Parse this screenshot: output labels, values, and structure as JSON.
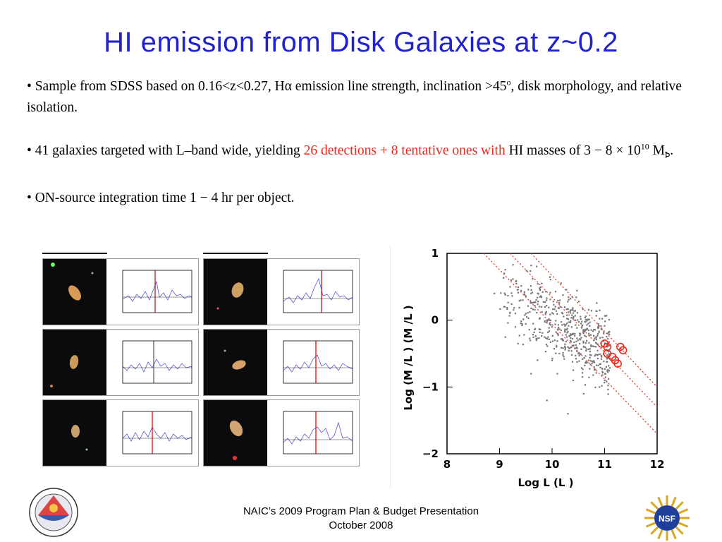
{
  "slide": {
    "title": "HI emission from Disk Galaxies at z~0.2",
    "bullet1": "• Sample from SDSS based on 0.16<z<0.27, Hα emission line strength, inclination >45",
    "bullet1_sup": "o",
    "bullet1_end": ", disk morphology, and relative isolation.",
    "bullet2_a": "• 41 galaxies targeted with L–band wide, yielding ",
    "bullet2_red": "26 detections + 8 tentative ones with",
    "bullet2_b": " HI masses of  3 − 8 × 10",
    "bullet2_sup": "10",
    "bullet2_c": " M",
    "bullet2_sub": "Ꝥ",
    "bullet2_d": ".",
    "bullet3": "• ON-source integration time 1 − 4 hr per object."
  },
  "footer": {
    "line1": "NAIC’s 2009 Program Plan & Budget Presentation",
    "line2": "October 2008"
  },
  "logos": {
    "right_text": "NSF"
  },
  "chart_data": {
    "type": "scatter",
    "xlabel": "Log  L  (L )",
    "xlabel_sub": "I",
    "xlabel_sun": "⊙",
    "ylabel": "Log  (M  /L )  (M /L )",
    "xlim": [
      8,
      12
    ],
    "ylim": [
      -2,
      1
    ],
    "xticks": [
      "8",
      "9",
      "10",
      "11",
      "12"
    ],
    "yticks": [
      "1",
      "0",
      "−1",
      "−2"
    ],
    "series": [
      {
        "marker": "gray-dots",
        "color": "#777777",
        "points": [
          [
            9.2,
            0.5
          ],
          [
            9.4,
            0.3
          ],
          [
            9.6,
            0.4
          ],
          [
            9.8,
            0.2
          ],
          [
            9.5,
            0.1
          ],
          [
            9.9,
            0.0
          ],
          [
            10.0,
            -0.1
          ],
          [
            10.1,
            -0.2
          ],
          [
            10.2,
            -0.3
          ],
          [
            10.3,
            -0.4
          ],
          [
            10.4,
            -0.2
          ],
          [
            10.5,
            -0.5
          ],
          [
            10.6,
            -0.4
          ],
          [
            10.7,
            -0.6
          ],
          [
            10.8,
            -0.7
          ],
          [
            10.2,
            0.1
          ],
          [
            9.7,
            -0.3
          ],
          [
            9.3,
            -0.1
          ],
          [
            10.0,
            -0.6
          ],
          [
            10.4,
            -0.9
          ],
          [
            10.6,
            -1.1
          ],
          [
            10.9,
            -1.0
          ],
          [
            9.6,
            -0.8
          ],
          [
            9.9,
            -1.2
          ],
          [
            10.3,
            -1.4
          ],
          [
            10.1,
            -0.8
          ],
          [
            10.7,
            -0.2
          ],
          [
            11.0,
            -0.9
          ],
          [
            9.1,
            0.2
          ],
          [
            8.9,
            0.4
          ]
        ]
      },
      {
        "marker": "red-circles",
        "color": "#e8291c",
        "points": [
          [
            11.0,
            -0.35
          ],
          [
            11.05,
            -0.5
          ],
          [
            11.15,
            -0.55
          ],
          [
            11.2,
            -0.6
          ],
          [
            11.3,
            -0.4
          ],
          [
            11.35,
            -0.45
          ],
          [
            11.05,
            -0.4
          ],
          [
            11.25,
            -0.65
          ]
        ]
      }
    ],
    "lines": [
      {
        "style": "dotted",
        "color": "#e8291c",
        "from": [
          8.7,
          1.0
        ],
        "to": [
          12.0,
          -1.7
        ]
      },
      {
        "style": "dotted",
        "color": "#e8291c",
        "from": [
          9.2,
          1.0
        ],
        "to": [
          12.0,
          -1.3
        ]
      },
      {
        "style": "dotted",
        "color": "#e8291c",
        "from": [
          9.6,
          1.0
        ],
        "to": [
          12.0,
          -1.0
        ]
      }
    ]
  }
}
